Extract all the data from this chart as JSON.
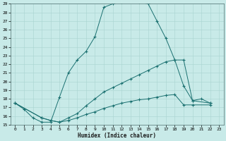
{
  "xlabel": "Humidex (Indice chaleur)",
  "background_color": "#c8eae8",
  "grid_color": "#a8d4d0",
  "line_color": "#1a7070",
  "xlim": [
    -0.5,
    23.5
  ],
  "ylim": [
    15,
    29
  ],
  "x_ticks": [
    0,
    1,
    2,
    3,
    4,
    5,
    6,
    7,
    8,
    9,
    10,
    11,
    12,
    13,
    14,
    15,
    16,
    17,
    18,
    19,
    20,
    21,
    22,
    23
  ],
  "y_ticks": [
    15,
    16,
    17,
    18,
    19,
    20,
    21,
    22,
    23,
    24,
    25,
    26,
    27,
    28,
    29
  ],
  "series": [
    {
      "x": [
        0,
        1,
        2,
        3,
        4,
        5,
        6,
        7,
        8,
        9,
        10,
        11,
        12,
        13,
        14,
        15,
        16,
        17,
        18,
        19,
        20,
        21,
        22
      ],
      "y": [
        17.5,
        16.8,
        15.8,
        15.3,
        15.3,
        18.2,
        21.0,
        22.5,
        23.5,
        25.2,
        28.6,
        29.0,
        29.2,
        29.3,
        29.2,
        29.0,
        27.0,
        25.0,
        22.5,
        22.5,
        17.8,
        18.0,
        17.5
      ]
    },
    {
      "x": [
        0,
        3,
        4,
        5,
        6,
        7,
        8,
        9,
        10,
        11,
        12,
        13,
        14,
        15,
        16,
        17,
        18,
        19,
        20,
        22
      ],
      "y": [
        17.5,
        15.8,
        15.5,
        15.3,
        15.8,
        16.3,
        17.2,
        18.0,
        18.8,
        19.3,
        19.8,
        20.3,
        20.8,
        21.3,
        21.8,
        22.3,
        22.5,
        19.5,
        17.8,
        17.5
      ]
    },
    {
      "x": [
        0,
        3,
        4,
        5,
        6,
        7,
        8,
        9,
        10,
        11,
        12,
        13,
        14,
        15,
        16,
        17,
        18,
        19,
        20,
        22
      ],
      "y": [
        17.5,
        15.8,
        15.5,
        15.3,
        15.5,
        15.8,
        16.2,
        16.5,
        16.9,
        17.2,
        17.5,
        17.7,
        17.9,
        18.0,
        18.2,
        18.4,
        18.5,
        17.3,
        17.3,
        17.3
      ]
    }
  ]
}
